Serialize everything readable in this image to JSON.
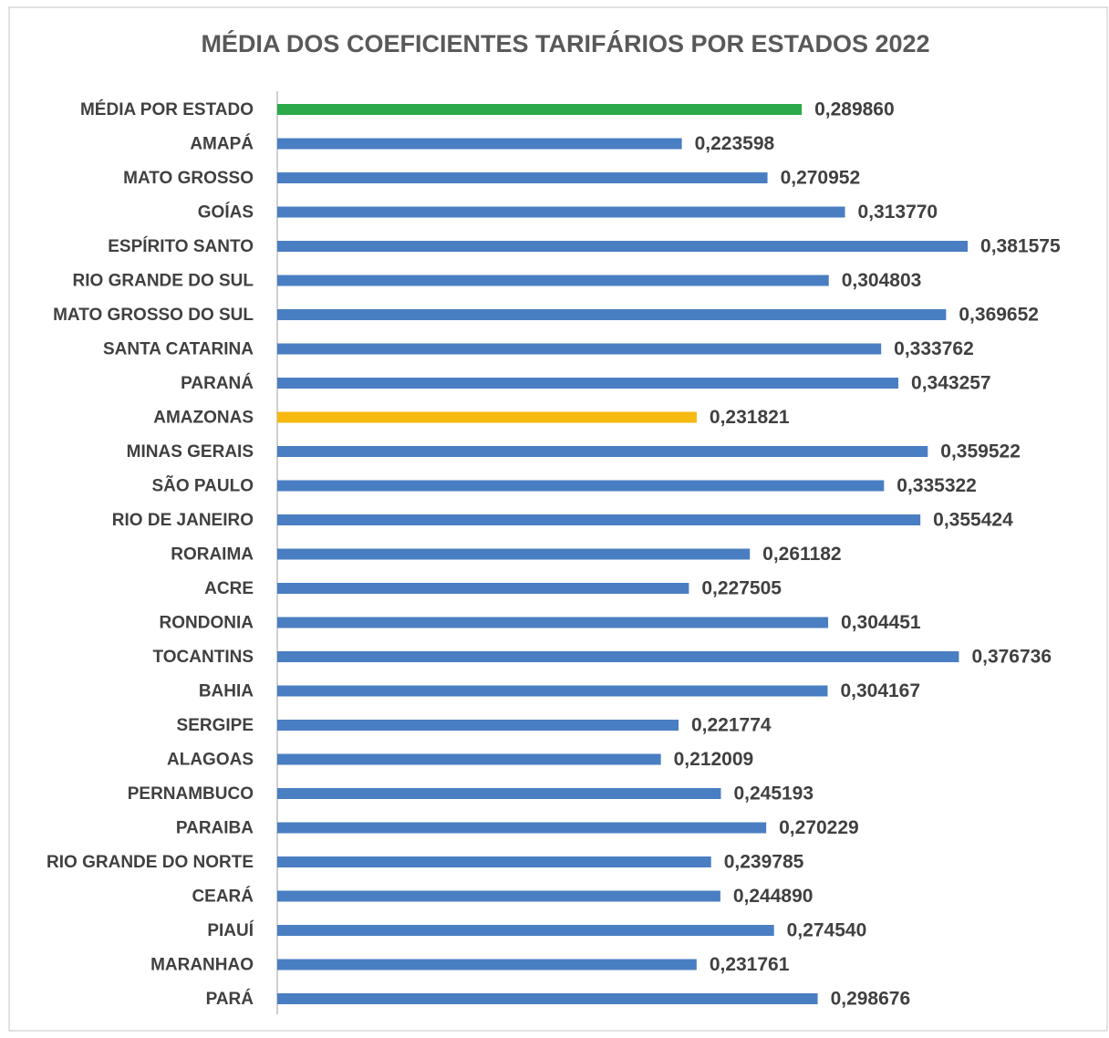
{
  "chart_data": {
    "type": "barh",
    "title": "MÉDIA DOS COEFICIENTES TARIFÁRIOS POR ESTADOS 2022",
    "categories": [
      "MÉDIA POR ESTADO",
      "AMAPÁ",
      "MATO GROSSO",
      "GOÍAS",
      "ESPÍRITO SANTO",
      "RIO GRANDE DO SUL",
      "MATO GROSSO DO SUL",
      "SANTA CATARINA",
      "PARANÁ",
      "AMAZONAS",
      "MINAS GERAIS",
      "SÃO PAULO",
      "RIO DE JANEIRO",
      "RORAIMA",
      "ACRE",
      "RONDONIA",
      "TOCANTINS",
      "BAHIA",
      "SERGIPE",
      "ALAGOAS",
      "PERNAMBUCO",
      "PARAIBA",
      "RIO GRANDE DO NORTE",
      "CEARÁ",
      "PIAUÍ",
      "MARANHAO",
      "PARÁ"
    ],
    "values": [
      0.28986,
      0.223598,
      0.270952,
      0.31377,
      0.381575,
      0.304803,
      0.369652,
      0.333762,
      0.343257,
      0.231821,
      0.359522,
      0.335322,
      0.355424,
      0.261182,
      0.227505,
      0.304451,
      0.376736,
      0.304167,
      0.221774,
      0.212009,
      0.245193,
      0.270229,
      0.239785,
      0.24489,
      0.27454,
      0.231761,
      0.298676
    ],
    "value_labels": [
      "0,289860",
      "0,223598",
      "0,270952",
      "0,313770",
      "0,381575",
      "0,304803",
      "0,369652",
      "0,333762",
      "0,343257",
      "0,231821",
      "0,359522",
      "0,335322",
      "0,355424",
      "0,261182",
      "0,227505",
      "0,304451",
      "0,376736",
      "0,304167",
      "0,221774",
      "0,212009",
      "0,245193",
      "0,270229",
      "0,239785",
      "0,244890",
      "0,274540",
      "0,231761",
      "0,298676"
    ],
    "colors": [
      "#2ca94a",
      "#4a7ec2",
      "#4a7ec2",
      "#4a7ec2",
      "#4a7ec2",
      "#4a7ec2",
      "#4a7ec2",
      "#4a7ec2",
      "#4a7ec2",
      "#f5b90f",
      "#4a7ec2",
      "#4a7ec2",
      "#4a7ec2",
      "#4a7ec2",
      "#4a7ec2",
      "#4a7ec2",
      "#4a7ec2",
      "#4a7ec2",
      "#4a7ec2",
      "#4a7ec2",
      "#4a7ec2",
      "#4a7ec2",
      "#4a7ec2",
      "#4a7ec2",
      "#4a7ec2",
      "#4a7ec2",
      "#4a7ec2"
    ],
    "xlim": [
      0,
      0.45
    ]
  }
}
